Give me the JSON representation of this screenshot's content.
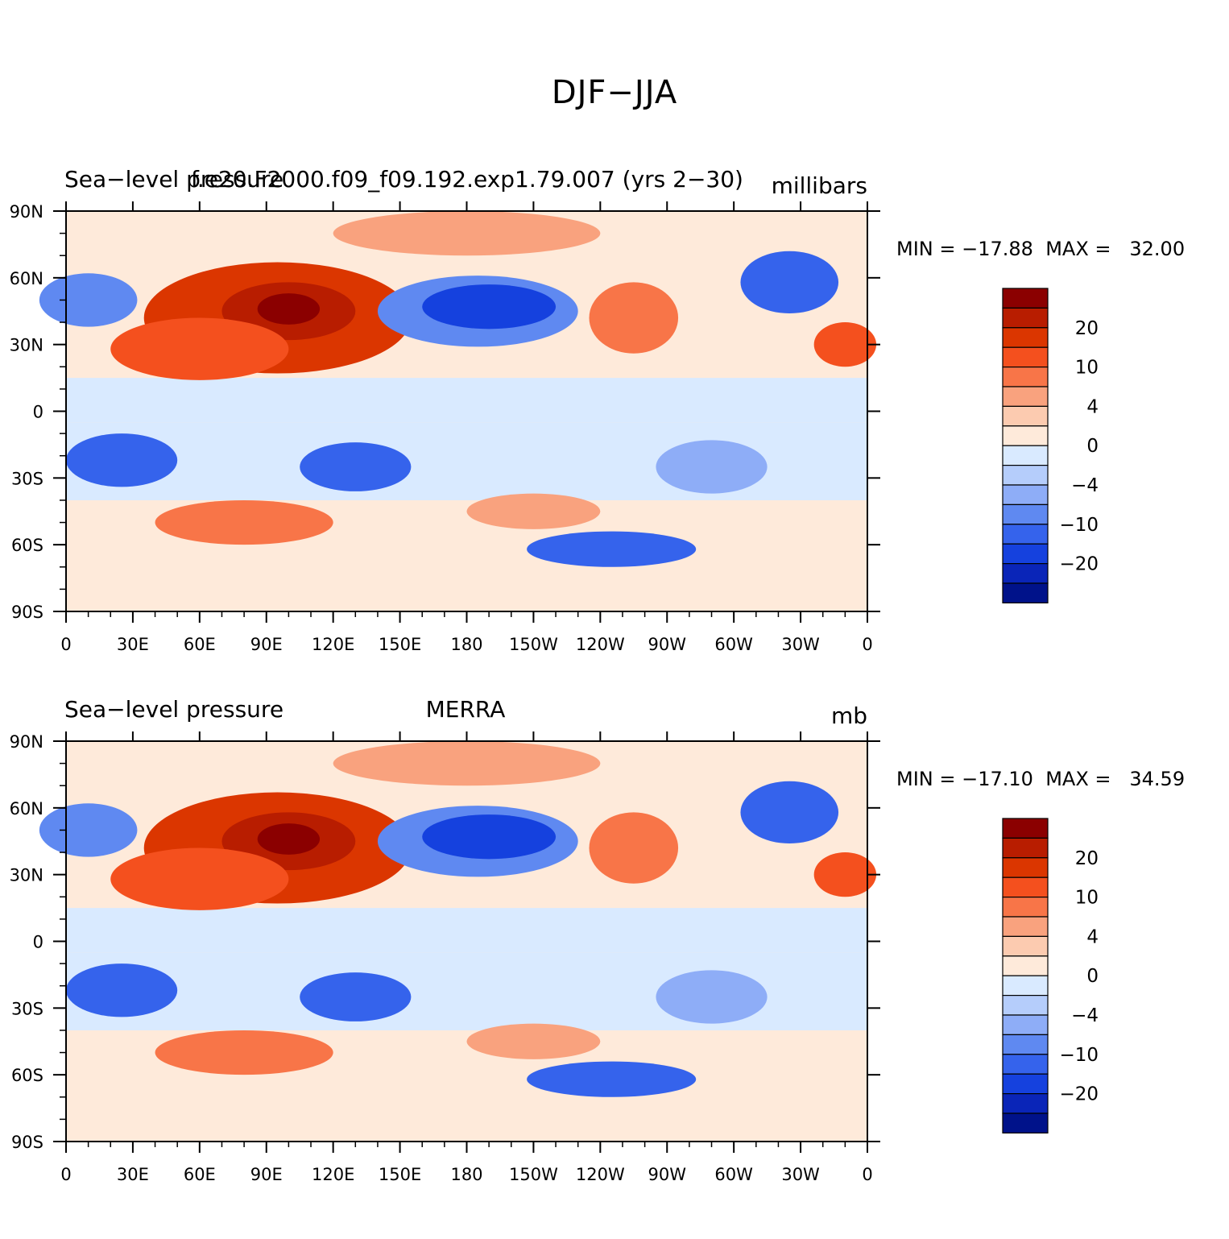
{
  "title": "DJF−JJA",
  "chart_data": [
    {
      "type": "heatmap",
      "panel": "top",
      "left_title": "Sea−level pressure",
      "center_title": "f.e20.F2000.f09_f09.192.exp1.79.007 (yrs 2−30)",
      "units": "millibars",
      "min_label": "MIN = −17.88",
      "max_label": "MAX =   32.00",
      "min": -17.88,
      "max": 32.0
    },
    {
      "type": "heatmap",
      "panel": "bottom",
      "left_title": "Sea−level pressure",
      "center_title": "MERRA",
      "units": "mb",
      "min_label": "MIN = −17.10",
      "max_label": "MAX =   34.59",
      "min": -17.1,
      "max": 34.59
    }
  ],
  "axes": {
    "lat_ticks": [
      "90N",
      "60N",
      "30N",
      "0",
      "30S",
      "60S",
      "90S"
    ],
    "lat_values": [
      90,
      60,
      30,
      0,
      -30,
      -60,
      -90
    ],
    "lon_ticks": [
      "0",
      "30E",
      "60E",
      "90E",
      "120E",
      "150E",
      "180",
      "150W",
      "120W",
      "90W",
      "60W",
      "30W",
      "0"
    ],
    "lon_values": [
      0,
      30,
      60,
      90,
      120,
      150,
      180,
      210,
      240,
      270,
      300,
      330,
      360
    ]
  },
  "colorbar": {
    "labels": [
      "20",
      "10",
      "4",
      "0",
      "−4",
      "−10",
      "−20"
    ],
    "colors": [
      "#8b0000",
      "#b81d00",
      "#db3600",
      "#f4501e",
      "#f87548",
      "#f9a27e",
      "#fccbb0",
      "#feeada",
      "#d9eaff",
      "#b5cdfb",
      "#8eadf7",
      "#5f89f1",
      "#3563ec",
      "#1541de",
      "#0a25b8",
      "#00128a"
    ]
  },
  "colors": {
    "map_dark_red": "#8b0000",
    "map_blue": "#3563ec",
    "land_outline": "#000000"
  }
}
